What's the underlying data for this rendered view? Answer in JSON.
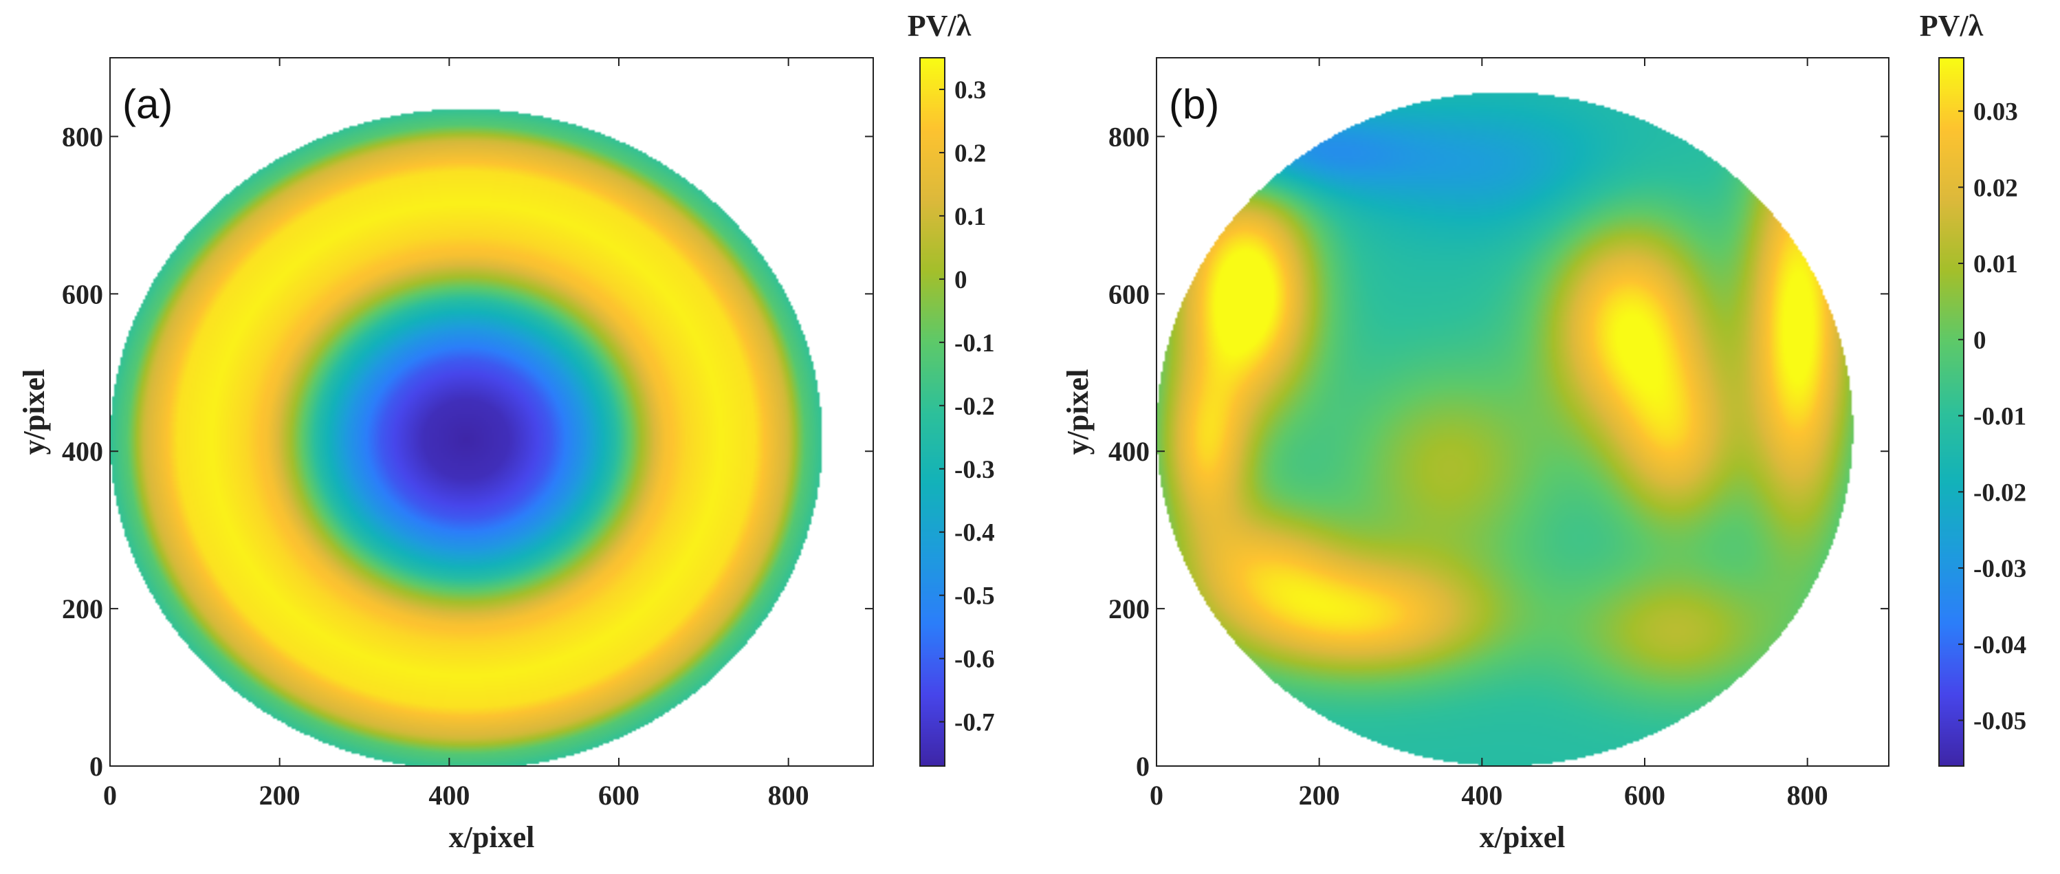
{
  "colors": {
    "parula": [
      "#3e26a8",
      "#4746eb",
      "#2c7efa",
      "#1e9cdd",
      "#13b2ba",
      "#2ec09a",
      "#5ec969",
      "#a4bf2b",
      "#dcb93b",
      "#fdc330",
      "#f9fb15"
    ]
  },
  "chart_data": [
    {
      "type": "heatmap",
      "panel_label": "(a)",
      "xlabel": "x/pixel",
      "ylabel": "y/pixel",
      "xlim": [
        0,
        900
      ],
      "ylim": [
        0,
        900
      ],
      "xticks": [
        0,
        200,
        400,
        600,
        800
      ],
      "yticks": [
        0,
        200,
        400,
        600,
        800
      ],
      "aperture_center": [
        420,
        415
      ],
      "aperture_radius": 420,
      "surface_description": "radially symmetric: minimum at center, ring peak at r~260",
      "colorbar": {
        "title": "PV/λ",
        "min": -0.77,
        "max": 0.35,
        "ticks": [
          "0.3",
          "0.2",
          "0.1",
          "0",
          "-0.1",
          "-0.2",
          "-0.3",
          "-0.4",
          "-0.5",
          "-0.6",
          "-0.7"
        ],
        "tick_values": [
          0.3,
          0.2,
          0.1,
          0,
          -0.1,
          -0.2,
          -0.3,
          -0.4,
          -0.5,
          -0.6,
          -0.7
        ]
      },
      "field": {
        "kind": "radial",
        "points": [
          {
            "r": 0,
            "value": -0.77
          },
          {
            "r": 50,
            "value": -0.74
          },
          {
            "r": 100,
            "value": -0.62
          },
          {
            "r": 140,
            "value": -0.45
          },
          {
            "r": 175,
            "value": -0.25
          },
          {
            "r": 205,
            "value": 0.0
          },
          {
            "r": 235,
            "value": 0.22
          },
          {
            "r": 260,
            "value": 0.28
          },
          {
            "r": 300,
            "value": 0.33
          },
          {
            "r": 340,
            "value": 0.3
          },
          {
            "r": 380,
            "value": 0.1
          },
          {
            "r": 400,
            "value": -0.12
          },
          {
            "r": 420,
            "value": -0.2
          }
        ]
      }
    },
    {
      "type": "heatmap",
      "panel_label": "(b)",
      "xlabel": "x/pixel",
      "ylabel": "y/pixel",
      "xlim": [
        0,
        900
      ],
      "ylim": [
        0,
        900
      ],
      "xticks": [
        0,
        200,
        400,
        600,
        800
      ],
      "yticks": [
        0,
        200,
        400,
        600,
        800
      ],
      "aperture_center": [
        428,
        428
      ],
      "aperture_radius": 428,
      "surface_description": "residual aberration with several warm lobes on a near-zero background",
      "colorbar": {
        "title": "PV/λ",
        "min": -0.056,
        "max": 0.037,
        "ticks": [
          "0.03",
          "0.02",
          "0.01",
          "0",
          "-0.01",
          "-0.02",
          "-0.03",
          "-0.04",
          "-0.05"
        ],
        "tick_values": [
          0.03,
          0.02,
          0.01,
          0,
          -0.01,
          -0.02,
          -0.03,
          -0.04,
          -0.05
        ]
      },
      "field": {
        "kind": "blobs",
        "base": -0.012,
        "blobs": [
          {
            "x": 580,
            "y": 560,
            "sx": 70,
            "sy": 95,
            "value": 0.035
          },
          {
            "x": 640,
            "y": 410,
            "sx": 55,
            "sy": 80,
            "value": 0.02
          },
          {
            "x": 110,
            "y": 600,
            "sx": 60,
            "sy": 100,
            "value": 0.045
          },
          {
            "x": 60,
            "y": 400,
            "sx": 40,
            "sy": 80,
            "value": 0.025
          },
          {
            "x": 250,
            "y": 190,
            "sx": 120,
            "sy": 55,
            "value": 0.03
          },
          {
            "x": 130,
            "y": 260,
            "sx": 70,
            "sy": 55,
            "value": 0.015
          },
          {
            "x": 790,
            "y": 560,
            "sx": 45,
            "sy": 180,
            "value": 0.04
          },
          {
            "x": 360,
            "y": 380,
            "sx": 90,
            "sy": 90,
            "value": 0.01
          },
          {
            "x": 640,
            "y": 170,
            "sx": 90,
            "sy": 60,
            "value": 0.012
          },
          {
            "x": 420,
            "y": 760,
            "sx": 120,
            "sy": 60,
            "value": -0.025
          },
          {
            "x": 150,
            "y": 780,
            "sx": 120,
            "sy": 40,
            "value": -0.035
          }
        ]
      }
    }
  ]
}
